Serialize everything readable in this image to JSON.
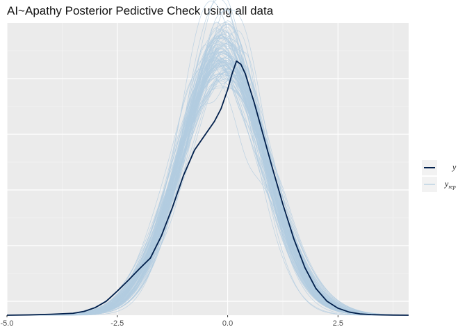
{
  "chart_data": {
    "type": "line",
    "title": "AI~Apathy Posterior Pedictive Check using all data",
    "xlabel": "",
    "ylabel": "",
    "xlim": [
      -5.0,
      4.1
    ],
    "ylim": [
      0,
      0.46
    ],
    "x_ticks": [
      "-5.0",
      "-2.5",
      "0.0",
      "2.5"
    ],
    "x_tick_values": [
      -5.0,
      -2.5,
      0.0,
      2.5
    ],
    "grid": true,
    "legend_position": "right",
    "legend": [
      {
        "label": "y",
        "subscript": "",
        "color": "#011f4b"
      },
      {
        "label": "y",
        "subscript": "rep",
        "color": "#b3cde0"
      }
    ],
    "series": [
      {
        "name": "y",
        "color": "#011f4b",
        "x": [
          -5.0,
          -4.5,
          -4.0,
          -3.5,
          -3.25,
          -3.0,
          -2.75,
          -2.5,
          -2.25,
          -2.0,
          -1.75,
          -1.5,
          -1.25,
          -1.0,
          -0.75,
          -0.5,
          -0.3,
          -0.15,
          0.0,
          0.1,
          0.2,
          0.3,
          0.4,
          0.6,
          0.8,
          1.0,
          1.25,
          1.5,
          1.75,
          2.0,
          2.25,
          2.5,
          2.75,
          3.0,
          3.25,
          3.5,
          3.75,
          4.1
        ],
        "y": [
          0.0,
          0.0005,
          0.0015,
          0.003,
          0.006,
          0.012,
          0.022,
          0.038,
          0.055,
          0.073,
          0.09,
          0.125,
          0.17,
          0.22,
          0.26,
          0.285,
          0.305,
          0.325,
          0.355,
          0.38,
          0.4,
          0.395,
          0.38,
          0.335,
          0.285,
          0.235,
          0.175,
          0.12,
          0.075,
          0.042,
          0.022,
          0.011,
          0.005,
          0.002,
          0.001,
          0.0005,
          0.0002,
          0.0
        ]
      }
    ],
    "replicates": {
      "name": "y_rep",
      "color": "#b3cde0",
      "count": 100,
      "mean": -0.12,
      "sd": 0.98
    }
  }
}
